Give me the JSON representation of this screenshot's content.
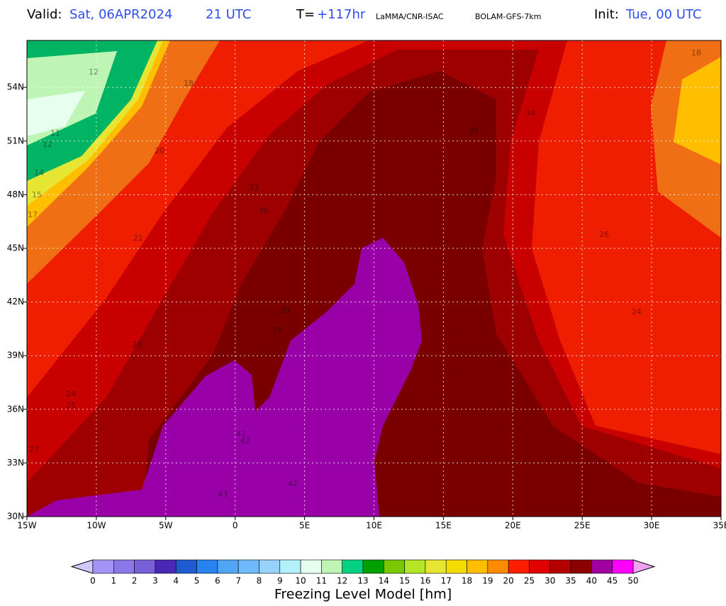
{
  "header": {
    "valid_label": "Valid:",
    "valid_date": "Sat, 06APR2024",
    "valid_hour": "21 UTC",
    "t_label": "T=",
    "t_value": "+117hr",
    "source": "LaMMA/CNR-ISAC",
    "model": "BOLAM-GFS-7km",
    "init_label": "Init:",
    "init_value": "Tue, 00 UTC"
  },
  "map": {
    "x_labels": [
      "15W",
      "10W",
      "5W",
      "0",
      "5E",
      "10E",
      "15E",
      "20E",
      "25E",
      "30E",
      "35E"
    ],
    "y_labels": [
      "30N",
      "33N",
      "36N",
      "39N",
      "42N",
      "45N",
      "48N",
      "51N",
      "54N"
    ],
    "contour_labels": [
      "12",
      "11",
      "12",
      "14",
      "15",
      "17",
      "18",
      "21",
      "20",
      "24",
      "25",
      "27",
      "28",
      "33",
      "36",
      "38",
      "39",
      "41",
      "42",
      "43",
      "42",
      "35",
      "34",
      "26",
      "24",
      "18"
    ]
  },
  "colorbar": {
    "labels": [
      0,
      1,
      2,
      3,
      4,
      5,
      6,
      7,
      8,
      9,
      10,
      11,
      12,
      13,
      14,
      15,
      16,
      17,
      18,
      19,
      20,
      25,
      30,
      35,
      40,
      45,
      50
    ],
    "colors": [
      "#a594f5",
      "#8a78e8",
      "#7860d8",
      "#4b28b4",
      "#1e5ad2",
      "#2882f0",
      "#50a5f5",
      "#6eb9fa",
      "#96d2fa",
      "#b4f0fa",
      "#e6ffee",
      "#bef5b4",
      "#00d282",
      "#00a000",
      "#78c800",
      "#b4e628",
      "#e6e632",
      "#f5dc00",
      "#ffbe00",
      "#ff8c00",
      "#ff1e00",
      "#e10000",
      "#b40000",
      "#8c0000",
      "#a000a0",
      "#ff00ff"
    ],
    "under_color": "#d2c8fa",
    "over_color": "#f0a0f0",
    "title": "Freezing Level Model [hm]"
  }
}
